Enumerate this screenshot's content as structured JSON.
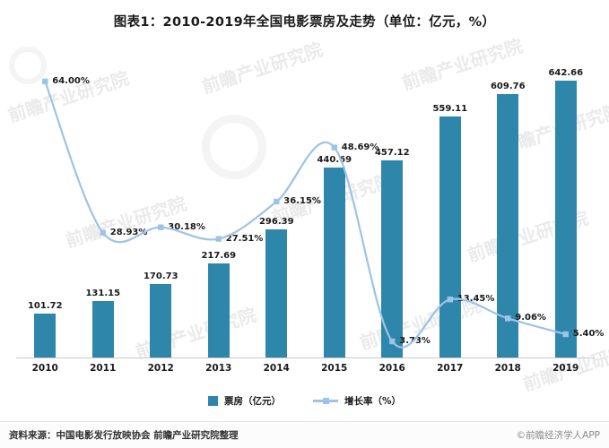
{
  "title": "图表1：2010-2019年全国电影票房及走势（单位：亿元，%）",
  "chart_data": {
    "type": "bar+line",
    "categories": [
      "2010",
      "2011",
      "2012",
      "2013",
      "2014",
      "2015",
      "2016",
      "2017",
      "2018",
      "2019"
    ],
    "series": [
      {
        "name": "票房（亿元）",
        "type": "bar",
        "color": "#2E86AB",
        "values": [
          101.72,
          131.15,
          170.73,
          217.69,
          296.39,
          440.69,
          457.12,
          559.11,
          609.76,
          642.66
        ],
        "labels": [
          "101.72",
          "131.15",
          "170.73",
          "217.69",
          "296.39",
          "440.69",
          "457.12",
          "559.11",
          "609.76",
          "642.66"
        ]
      },
      {
        "name": "增长率（%）",
        "type": "line",
        "color": "#9DC3E6",
        "values": [
          64.0,
          28.93,
          30.18,
          27.51,
          36.15,
          48.69,
          3.73,
          13.45,
          9.06,
          5.4
        ],
        "labels": [
          "64.00%",
          "28.93%",
          "30.18%",
          "27.51%",
          "36.15%",
          "48.69%",
          "3.73%",
          "13.45%",
          "9.06%",
          "5.40%"
        ]
      }
    ],
    "bar_ylim": [
      0,
      700
    ],
    "line_ylim": [
      0,
      70
    ],
    "grid": false,
    "legend_position": "bottom"
  },
  "footer": {
    "source": "资料来源：中国电影发行放映协会 前瞻产业研究院整理",
    "copyright": "©前瞻经济学人APP"
  },
  "watermark": "前瞻产业研究院"
}
